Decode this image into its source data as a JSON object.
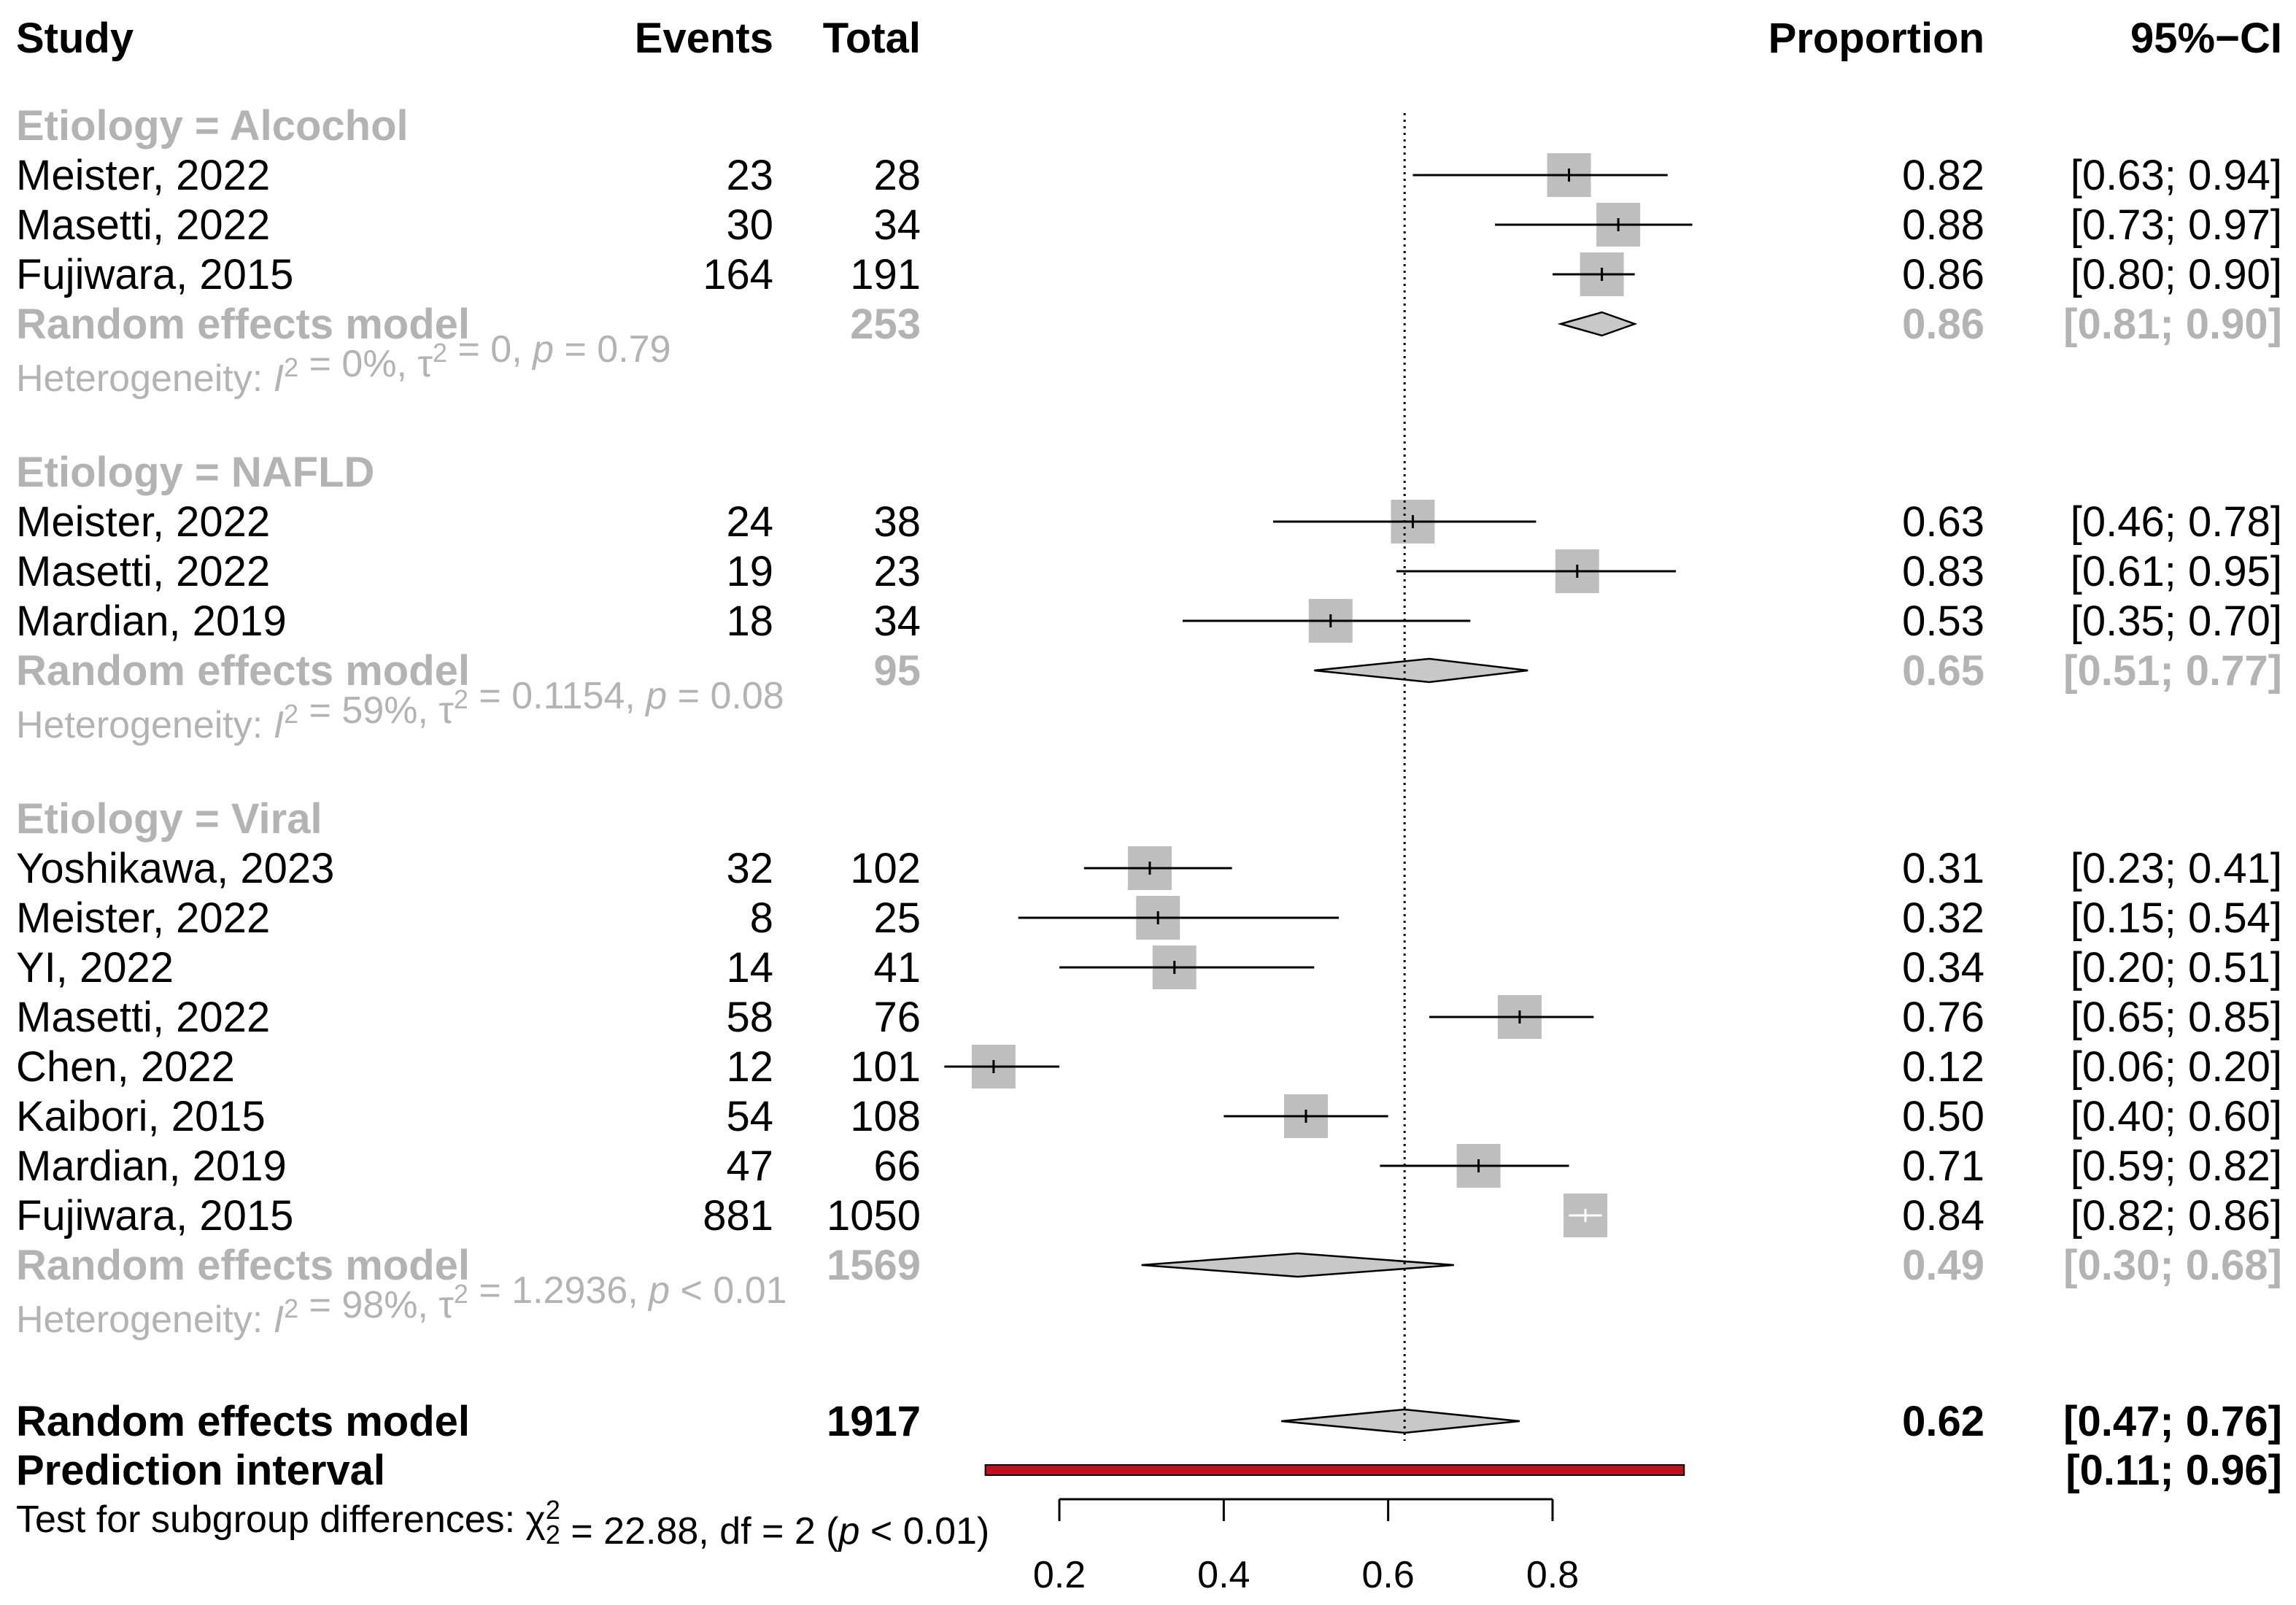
{
  "headers": {
    "study": "Study",
    "events": "Events",
    "total": "Total",
    "proportion": "Proportion",
    "ci": "95%−CI"
  },
  "reference_line": 0.62,
  "groups": [
    {
      "label": "Etiology = Alcochol",
      "studies": [
        {
          "study": "Meister, 2022",
          "events": "23",
          "total": "28",
          "prop": 0.82,
          "lo": 0.63,
          "hi": 0.94,
          "prop_text": "0.82",
          "ci_text": "[0.63; 0.94]",
          "weight": 0.7
        },
        {
          "study": "Masetti, 2022",
          "events": "30",
          "total": "34",
          "prop": 0.88,
          "lo": 0.73,
          "hi": 0.97,
          "prop_text": "0.88",
          "ci_text": "[0.73; 0.97]",
          "weight": 0.7
        },
        {
          "study": "Fujiwara, 2015",
          "events": "164",
          "total": "191",
          "prop": 0.86,
          "lo": 0.8,
          "hi": 0.9,
          "prop_text": "0.86",
          "ci_text": "[0.80; 0.90]",
          "weight": 0.7
        }
      ],
      "pooled": {
        "label": "Random effects model",
        "total": "253",
        "est": 0.86,
        "lo": 0.81,
        "hi": 0.9,
        "prop_text": "0.86",
        "ci_text": "[0.81; 0.90]"
      },
      "heterogeneity": {
        "prefix": "Heterogeneity: ",
        "i2": "= 0%, ",
        "tau": "= 0, ",
        "p": "= 0.79"
      }
    },
    {
      "label": "Etiology = NAFLD",
      "studies": [
        {
          "study": "Meister, 2022",
          "events": "24",
          "total": "38",
          "prop": 0.63,
          "lo": 0.46,
          "hi": 0.78,
          "prop_text": "0.63",
          "ci_text": "[0.46; 0.78]",
          "weight": 0.7
        },
        {
          "study": "Masetti, 2022",
          "events": "19",
          "total": "23",
          "prop": 0.83,
          "lo": 0.61,
          "hi": 0.95,
          "prop_text": "0.83",
          "ci_text": "[0.61; 0.95]",
          "weight": 0.7
        },
        {
          "study": "Mardian, 2019",
          "events": "18",
          "total": "34",
          "prop": 0.53,
          "lo": 0.35,
          "hi": 0.7,
          "prop_text": "0.53",
          "ci_text": "[0.35; 0.70]",
          "weight": 0.7
        }
      ],
      "pooled": {
        "label": "Random effects model",
        "total": "95",
        "est": 0.65,
        "lo": 0.51,
        "hi": 0.77,
        "prop_text": "0.65",
        "ci_text": "[0.51; 0.77]"
      },
      "heterogeneity": {
        "prefix": "Heterogeneity: ",
        "i2": "= 59%, ",
        "tau": "= 0.1154, ",
        "p": "= 0.08"
      }
    },
    {
      "label": "Etiology = Viral",
      "studies": [
        {
          "study": "Yoshikawa, 2023",
          "events": "32",
          "total": "102",
          "prop": 0.31,
          "lo": 0.23,
          "hi": 0.41,
          "prop_text": "0.31",
          "ci_text": "[0.23; 0.41]",
          "weight": 0.7
        },
        {
          "study": "Meister, 2022",
          "events": "8",
          "total": "25",
          "prop": 0.32,
          "lo": 0.15,
          "hi": 0.54,
          "prop_text": "0.32",
          "ci_text": "[0.15; 0.54]",
          "weight": 0.7
        },
        {
          "study": "YI, 2022",
          "events": "14",
          "total": "41",
          "prop": 0.34,
          "lo": 0.2,
          "hi": 0.51,
          "prop_text": "0.34",
          "ci_text": "[0.20; 0.51]",
          "weight": 0.7
        },
        {
          "study": "Masetti, 2022",
          "events": "58",
          "total": "76",
          "prop": 0.76,
          "lo": 0.65,
          "hi": 0.85,
          "prop_text": "0.76",
          "ci_text": "[0.65; 0.85]",
          "weight": 0.7
        },
        {
          "study": "Chen, 2022",
          "events": "12",
          "total": "101",
          "prop": 0.12,
          "lo": 0.06,
          "hi": 0.2,
          "prop_text": "0.12",
          "ci_text": "[0.06; 0.20]",
          "weight": 0.7
        },
        {
          "study": "Kaibori, 2015",
          "events": "54",
          "total": "108",
          "prop": 0.5,
          "lo": 0.4,
          "hi": 0.6,
          "prop_text": "0.50",
          "ci_text": "[0.40; 0.60]",
          "weight": 0.7
        },
        {
          "study": "Mardian, 2019",
          "events": "47",
          "total": "66",
          "prop": 0.71,
          "lo": 0.59,
          "hi": 0.82,
          "prop_text": "0.71",
          "ci_text": "[0.59; 0.82]",
          "weight": 0.7
        },
        {
          "study": "Fujiwara, 2015",
          "events": "881",
          "total": "1050",
          "prop": 0.84,
          "lo": 0.82,
          "hi": 0.86,
          "prop_text": "0.84",
          "ci_text": "[0.82; 0.86]",
          "weight": 0.7
        }
      ],
      "pooled": {
        "label": "Random effects model",
        "total": "1569",
        "est": 0.49,
        "lo": 0.3,
        "hi": 0.68,
        "prop_text": "0.49",
        "ci_text": "[0.30; 0.68]"
      },
      "heterogeneity": {
        "prefix": "Heterogeneity: ",
        "i2": "= 98%, ",
        "tau": "= 1.2936, ",
        "p": "< 0.01"
      }
    }
  ],
  "overall": {
    "label": "Random effects model",
    "total": "1917",
    "est": 0.62,
    "lo": 0.47,
    "hi": 0.76,
    "prop_text": "0.62",
    "ci_text": "[0.47; 0.76]"
  },
  "prediction": {
    "label": "Prediction interval",
    "lo": 0.11,
    "hi": 0.96,
    "ci_text": "[0.11; 0.96]",
    "color": "#c0101e"
  },
  "subgroup_test": {
    "prefix": "Test for subgroup differences: ",
    "chi": "χ",
    "sub": "2",
    "sup": "2",
    "rest": " = 22.88, df = 2 (",
    "p": "p",
    "tail": " < 0.01)"
  },
  "axis": {
    "ticks": [
      0.2,
      0.4,
      0.6,
      0.8
    ],
    "tick_labels": [
      "0.2",
      "0.4",
      "0.6",
      "0.8"
    ]
  },
  "colors": {
    "square": "#bebebe",
    "diamond": "#c8c8c8",
    "subgroup_text": "#b3b3b3",
    "prediction": "#c0101e"
  },
  "chart_data": {
    "type": "forest",
    "categories": [
      "Meister, 2022",
      "Masetti, 2022",
      "Fujiwara, 2015",
      "Meister, 2022",
      "Masetti, 2022",
      "Mardian, 2019",
      "Yoshikawa, 2023",
      "Meister, 2022",
      "YI, 2022",
      "Masetti, 2022",
      "Chen, 2022",
      "Kaibori, 2015",
      "Mardian, 2019",
      "Fujiwara, 2015"
    ],
    "series": [
      {
        "name": "Proportion",
        "values": [
          0.82,
          0.88,
          0.86,
          0.63,
          0.83,
          0.53,
          0.31,
          0.32,
          0.34,
          0.76,
          0.12,
          0.5,
          0.71,
          0.84
        ]
      },
      {
        "name": "95%−CI lower",
        "values": [
          0.63,
          0.73,
          0.8,
          0.46,
          0.61,
          0.35,
          0.23,
          0.15,
          0.2,
          0.65,
          0.06,
          0.4,
          0.59,
          0.82
        ]
      },
      {
        "name": "95%−CI upper",
        "values": [
          0.94,
          0.97,
          0.9,
          0.78,
          0.95,
          0.7,
          0.41,
          0.54,
          0.51,
          0.85,
          0.2,
          0.6,
          0.82,
          0.86
        ]
      }
    ],
    "pooled": [
      {
        "group": "Etiology = Alcochol",
        "est": 0.86,
        "ci": [
          0.81,
          0.9
        ]
      },
      {
        "group": "Etiology = NAFLD",
        "est": 0.65,
        "ci": [
          0.51,
          0.77
        ]
      },
      {
        "group": "Etiology = Viral",
        "est": 0.49,
        "ci": [
          0.3,
          0.68
        ]
      }
    ],
    "overall": {
      "est": 0.62,
      "ci": [
        0.47,
        0.76
      ],
      "prediction_interval": [
        0.11,
        0.96
      ]
    },
    "xlim": [
      0.0,
      1.0
    ],
    "xticks": [
      0.2,
      0.4,
      0.6,
      0.8
    ]
  }
}
